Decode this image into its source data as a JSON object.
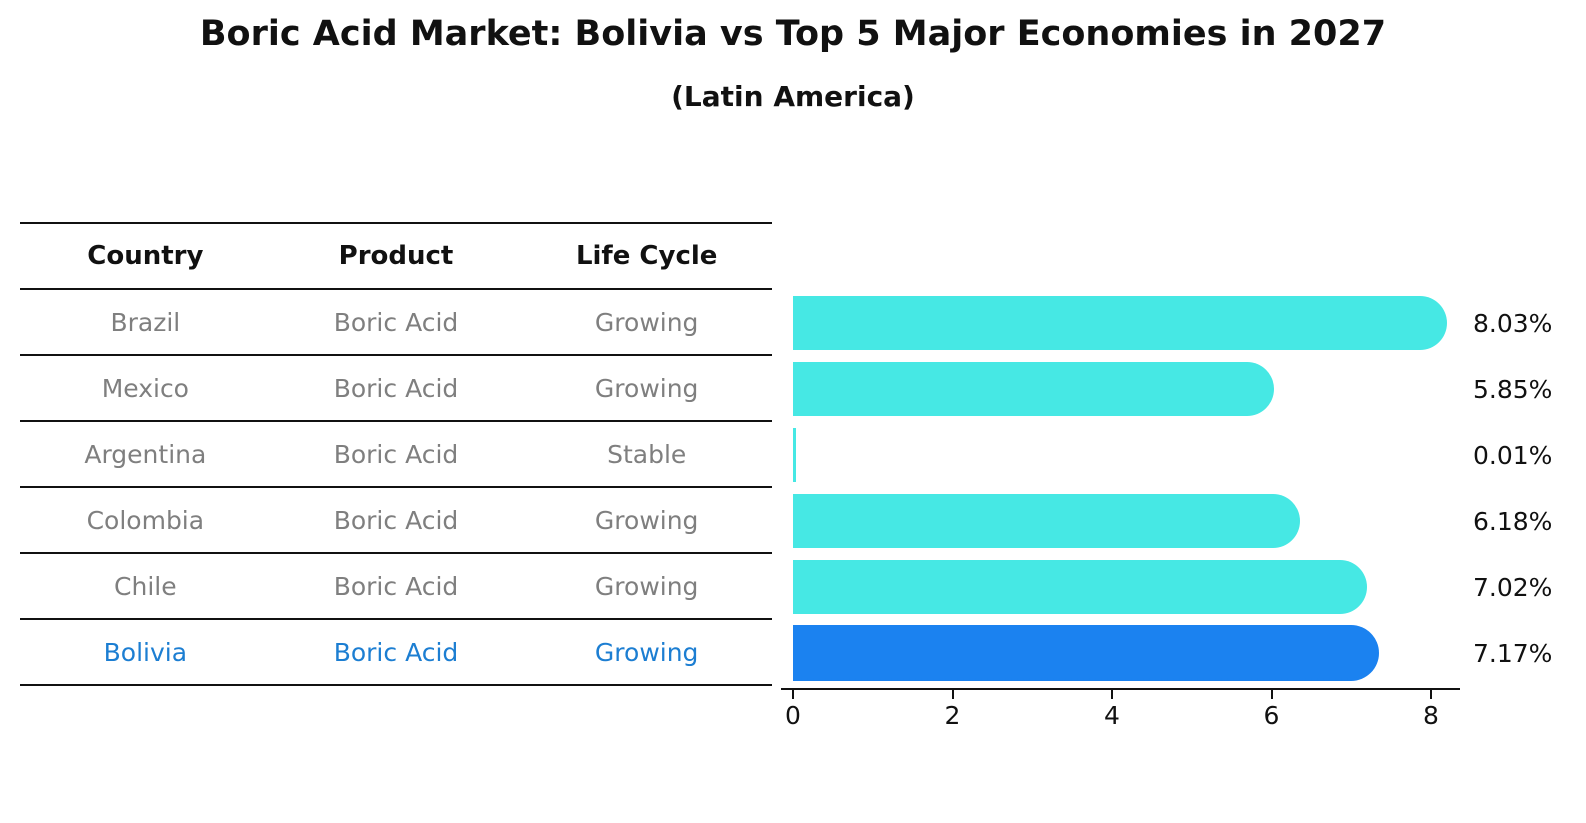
{
  "title": "Boric Acid Market: Bolivia vs Top 5 Major Economies in 2027",
  "subtitle": "(Latin America)",
  "table": {
    "headers": [
      "Country",
      "Product",
      "Life Cycle"
    ],
    "rows": [
      {
        "country": "Brazil",
        "product": "Boric Acid",
        "life_cycle": "Growing",
        "highlight": false
      },
      {
        "country": "Mexico",
        "product": "Boric Acid",
        "life_cycle": "Growing",
        "highlight": false
      },
      {
        "country": "Argentina",
        "product": "Boric Acid",
        "life_cycle": "Stable",
        "highlight": false
      },
      {
        "country": "Colombia",
        "product": "Boric Acid",
        "life_cycle": "Growing",
        "highlight": false
      },
      {
        "country": "Chile",
        "product": "Boric Acid",
        "life_cycle": "Growing",
        "highlight": false
      },
      {
        "country": "Bolivia",
        "product": "Boric Acid",
        "life_cycle": "Growing",
        "highlight": true
      }
    ]
  },
  "chart_data": {
    "type": "bar",
    "orientation": "horizontal",
    "title": "Boric Acid Market: Bolivia vs Top 5 Major Economies in 2027",
    "subtitle": "(Latin America)",
    "categories": [
      "Brazil",
      "Mexico",
      "Argentina",
      "Colombia",
      "Chile",
      "Bolivia"
    ],
    "values": [
      8.03,
      5.85,
      0.01,
      6.18,
      7.02,
      7.17
    ],
    "value_labels": [
      "8.03%",
      "5.85%",
      "0.01%",
      "6.18%",
      "7.02%",
      "7.17%"
    ],
    "xlabel": "",
    "ylabel": "",
    "x_ticks": [
      0,
      2,
      4,
      6,
      8
    ],
    "xlim": [
      0,
      8.5
    ],
    "grid": false,
    "legend": false,
    "bar_color": "#46e8e4",
    "highlight_index": 5,
    "highlight_color": "#1b82f0",
    "highlight_border_style": "dotted"
  },
  "colors": {
    "text_dark": "#111111",
    "text_gray": "#7f7f7f",
    "highlight_text": "#1c7ed2",
    "axis": "#111111",
    "background": "#ffffff"
  }
}
